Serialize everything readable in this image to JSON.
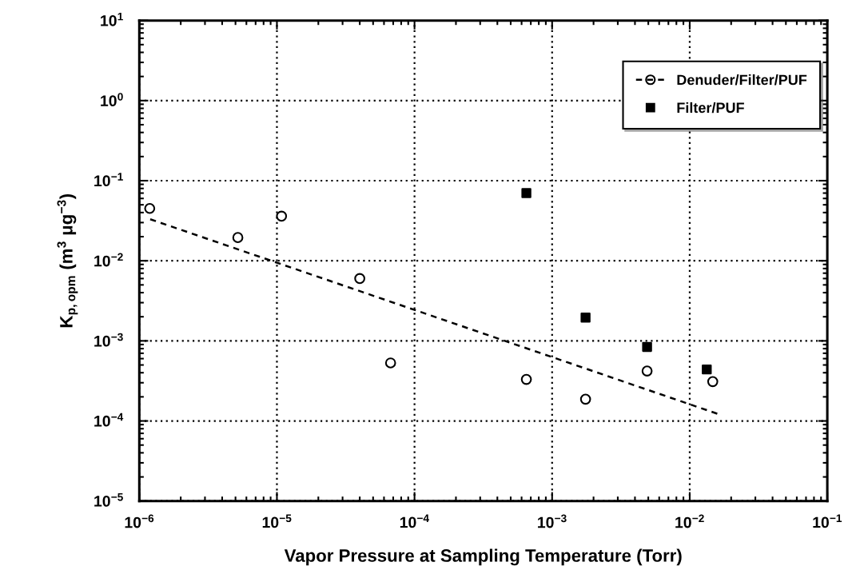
{
  "chart_data": {
    "type": "scatter",
    "xlabel": "Vapor Pressure at Sampling Temperature (Torr)",
    "ylabel": "K$_{p,opm}$ (m$^{3}$ μg$^{−3}$)",
    "log": "xy",
    "grid": true,
    "legend": "top right",
    "xlim": [
      1e-06,
      0.1
    ],
    "ylim": [
      1e-05,
      10
    ],
    "xticks": [
      {
        "value": 1e-06,
        "label": "10$^{−6}$"
      },
      {
        "value": 1e-05,
        "label": "10$^{−5}$"
      },
      {
        "value": 0.0001,
        "label": "10$^{−4}$"
      },
      {
        "value": 0.001,
        "label": "10$^{−3}$"
      },
      {
        "value": 0.01,
        "label": "10$^{−2}$"
      },
      {
        "value": 0.1,
        "label": "10$^{−1}$"
      }
    ],
    "yticks": [
      {
        "value": 1e-05,
        "label": "10$^{−5}$"
      },
      {
        "value": 0.0001,
        "label": "10$^{−4}$"
      },
      {
        "value": 0.001,
        "label": "10$^{−3}$"
      },
      {
        "value": 0.01,
        "label": "10$^{−2}$"
      },
      {
        "value": 0.1,
        "label": "10$^{−1}$"
      },
      {
        "value": 1,
        "label": "10$^{0}$"
      },
      {
        "value": 10,
        "label": "10$^{1}$"
      }
    ],
    "series": [
      {
        "name": "Denuder/Filter/PUF",
        "marker": "circle",
        "color": "#000000",
        "x": [
          1.19e-06,
          5.2e-06,
          1.08e-05,
          4e-05,
          6.7e-05,
          0.00065,
          0.00175,
          0.0049,
          0.0147
        ],
        "values": [
          0.045,
          0.0195,
          0.036,
          0.006,
          0.00053,
          0.00033,
          0.000187,
          0.00042,
          0.00031
        ]
      },
      {
        "type": "line",
        "line_style": "dashed",
        "marker": "none",
        "color": "#000000",
        "x": [
          1.2e-06,
          0.0168
        ],
        "values": [
          0.033,
          0.000119
        ]
      },
      {
        "name": "Filter/PUF",
        "marker": "square",
        "color": "#000000",
        "x": [
          0.00065,
          0.00175,
          0.0049,
          0.0133
        ],
        "values": [
          0.07,
          0.00195,
          0.00084,
          0.00044
        ]
      }
    ]
  }
}
